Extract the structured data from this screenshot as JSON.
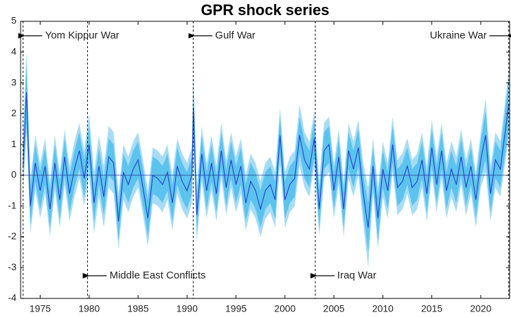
{
  "chart_data": {
    "type": "line",
    "title": "GPR shock series",
    "xlim": [
      1973.0,
      2022.95
    ],
    "xticks": [
      1975,
      1980,
      1985,
      1990,
      1995,
      2000,
      2005,
      2010,
      2015,
      2020
    ],
    "ylim": [
      -4,
      5
    ],
    "yticks": [
      -4,
      -3,
      -2,
      -1,
      0,
      1,
      2,
      3,
      4,
      5
    ],
    "color": "#1f3ecf",
    "x": [
      1973.25,
      1973.6,
      1974.0,
      1974.5,
      1975.0,
      1975.5,
      1976.0,
      1976.5,
      1977.0,
      1977.5,
      1978.0,
      1978.5,
      1979.0,
      1979.5,
      1980.0,
      1980.5,
      1981.0,
      1981.5,
      1982.0,
      1982.5,
      1983.0,
      1983.5,
      1984.0,
      1984.5,
      1985.0,
      1985.5,
      1986.0,
      1986.5,
      1987.0,
      1987.5,
      1988.0,
      1988.5,
      1989.0,
      1989.5,
      1990.0,
      1990.5,
      1990.65,
      1991.0,
      1991.5,
      1992.0,
      1992.5,
      1993.0,
      1993.5,
      1994.0,
      1994.5,
      1995.0,
      1995.5,
      1996.0,
      1996.5,
      1997.0,
      1997.5,
      1998.0,
      1998.5,
      1999.0,
      1999.5,
      2000.0,
      2000.5,
      2001.0,
      2001.5,
      2002.0,
      2002.5,
      2003.0,
      2003.5,
      2004.0,
      2004.5,
      2005.0,
      2005.5,
      2006.0,
      2006.5,
      2007.0,
      2007.5,
      2008.0,
      2008.5,
      2009.0,
      2009.5,
      2010.0,
      2010.5,
      2011.0,
      2011.5,
      2012.0,
      2012.5,
      2013.0,
      2013.5,
      2014.0,
      2014.5,
      2015.0,
      2015.5,
      2016.0,
      2016.5,
      2017.0,
      2017.5,
      2018.0,
      2018.5,
      2019.0,
      2019.5,
      2020.0,
      2020.5,
      2021.0,
      2021.5,
      2022.0,
      2022.86
    ],
    "values": [
      0.3,
      2.7,
      -1.0,
      0.4,
      -0.5,
      0.3,
      -1.1,
      0.4,
      -0.8,
      0.6,
      -0.6,
      0.2,
      0.8,
      -0.1,
      1.0,
      -0.9,
      0.3,
      -0.7,
      0.6,
      0.4,
      -1.5,
      0.1,
      -0.3,
      0.2,
      0.5,
      -0.4,
      -1.4,
      0.0,
      -0.1,
      -0.3,
      0.1,
      -0.9,
      0.3,
      -0.2,
      -0.5,
      0.0,
      2.2,
      -1.3,
      0.7,
      -0.5,
      0.4,
      -0.6,
      0.8,
      -0.4,
      0.5,
      -0.3,
      0.3,
      -0.9,
      -0.2,
      -0.5,
      -1.1,
      -0.5,
      -0.3,
      -0.8,
      1.3,
      -0.8,
      -0.3,
      -0.1,
      1.3,
      0.5,
      0.2,
      1.2,
      -1.1,
      0.8,
      1.0,
      -0.5,
      0.6,
      -1.1,
      0.8,
      0.2,
      0.9,
      -0.6,
      -1.7,
      0.3,
      -1.4,
      0.2,
      -0.5,
      1.0,
      -0.4,
      -0.2,
      0.3,
      -0.4,
      -0.2,
      0.5,
      -0.6,
      0.9,
      -0.3,
      0.8,
      -0.5,
      0.2,
      -0.3,
      0.6,
      -0.4,
      0.3,
      -0.8,
      0.5,
      1.3,
      -0.6,
      0.5,
      0.2,
      2.3
    ],
    "bands": [
      {
        "color": "#a6dcf5",
        "errors": [
          0.9,
          1.3,
          0.9,
          0.9,
          0.9,
          0.9,
          0.9,
          0.9,
          0.9,
          0.9,
          0.9,
          0.9,
          0.9,
          0.9,
          1.0,
          1.0,
          1.0,
          1.0,
          1.0,
          1.0,
          0.9,
          0.9,
          0.9,
          0.9,
          0.9,
          0.9,
          0.9,
          0.9,
          0.9,
          0.9,
          0.9,
          0.9,
          0.9,
          0.9,
          0.9,
          0.9,
          1.2,
          0.9,
          0.9,
          0.9,
          0.9,
          0.9,
          0.9,
          0.9,
          0.9,
          0.9,
          0.9,
          0.9,
          0.9,
          0.9,
          0.9,
          0.9,
          0.9,
          0.9,
          0.9,
          0.9,
          0.9,
          0.9,
          1.0,
          0.9,
          0.9,
          0.9,
          0.9,
          0.9,
          0.9,
          0.9,
          0.9,
          0.9,
          0.9,
          0.9,
          0.9,
          1.0,
          1.3,
          0.9,
          1.0,
          0.9,
          0.9,
          0.9,
          0.9,
          0.9,
          0.9,
          0.9,
          0.9,
          0.9,
          0.9,
          0.9,
          0.9,
          0.9,
          0.9,
          0.9,
          0.9,
          0.9,
          0.9,
          0.9,
          0.9,
          0.9,
          1.2,
          0.9,
          0.9,
          0.9,
          1.1
        ]
      },
      {
        "color": "#5cc3ee",
        "errors": [
          0.6,
          1.0,
          0.6,
          0.6,
          0.6,
          0.6,
          0.6,
          0.6,
          0.6,
          0.6,
          0.6,
          0.6,
          0.6,
          0.6,
          0.6,
          0.6,
          0.6,
          0.6,
          0.6,
          0.6,
          0.6,
          0.6,
          0.6,
          0.6,
          0.6,
          0.6,
          0.6,
          0.6,
          0.6,
          0.6,
          0.6,
          0.6,
          0.6,
          0.6,
          0.6,
          0.6,
          0.8,
          0.6,
          0.6,
          0.6,
          0.6,
          0.6,
          0.6,
          0.6,
          0.6,
          0.6,
          0.6,
          0.6,
          0.6,
          0.6,
          0.6,
          0.6,
          0.6,
          0.6,
          0.6,
          0.6,
          0.6,
          0.6,
          0.6,
          0.6,
          0.6,
          0.6,
          0.6,
          0.6,
          0.6,
          0.6,
          0.6,
          0.6,
          0.6,
          0.6,
          0.6,
          0.6,
          0.8,
          0.6,
          0.7,
          0.6,
          0.6,
          0.6,
          0.6,
          0.6,
          0.6,
          0.6,
          0.6,
          0.6,
          0.6,
          0.6,
          0.6,
          0.6,
          0.6,
          0.6,
          0.6,
          0.6,
          0.6,
          0.6,
          0.6,
          0.6,
          0.8,
          0.6,
          0.6,
          0.6,
          0.8
        ]
      }
    ],
    "events": [
      {
        "label": "Yom Kippur War",
        "x": 1973.25,
        "position": "top",
        "side": "right"
      },
      {
        "label": "Middle East Conflicts",
        "x": 1979.84,
        "position": "bottom",
        "side": "right"
      },
      {
        "label": "Gulf War",
        "x": 1990.63,
        "position": "top",
        "side": "right"
      },
      {
        "label": "Iraq War",
        "x": 2003.1,
        "position": "bottom",
        "side": "right"
      },
      {
        "label": "Ukraine War",
        "x": 2022.86,
        "position": "top",
        "side": "left"
      }
    ]
  }
}
